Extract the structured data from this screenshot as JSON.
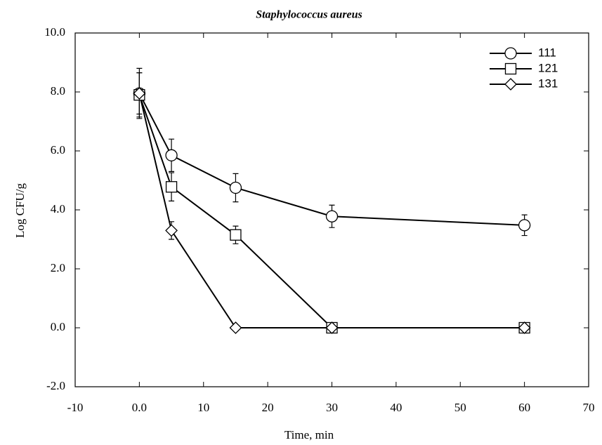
{
  "chart_data": {
    "type": "line",
    "title": "Staphylococcus aureus",
    "x_label": "Time, min",
    "y_label": "Log CFU/g",
    "x": [
      0,
      5,
      15,
      30,
      60
    ],
    "xlim": [
      -10,
      70
    ],
    "xticks": [
      -10,
      {
        "value": 0,
        "label": "0.0"
      },
      10,
      20,
      30,
      40,
      50,
      60,
      70
    ],
    "ylim": [
      -2,
      10
    ],
    "yticks": [
      {
        "value": -2,
        "label": "-2.0"
      },
      {
        "value": 0,
        "label": "0.0"
      },
      {
        "value": 2,
        "label": "2.0"
      },
      {
        "value": 4,
        "label": "4.0"
      },
      {
        "value": 6,
        "label": "6.0"
      },
      {
        "value": 8,
        "label": "8.0"
      },
      {
        "value": 10,
        "label": "10.0"
      }
    ],
    "legend_position": "upper right",
    "series": [
      {
        "name": "111",
        "color": "#000000",
        "marker": "circle",
        "values": [
          7.95,
          5.85,
          4.75,
          3.78,
          3.48
        ],
        "errors": [
          0.85,
          0.55,
          0.48,
          0.38,
          0.35
        ]
      },
      {
        "name": "121",
        "color": "#000000",
        "marker": "square",
        "values": [
          7.9,
          4.78,
          3.15,
          0,
          0
        ],
        "errors": [
          0.75,
          0.48,
          0.3,
          0,
          0
        ]
      },
      {
        "name": "131",
        "color": "#000000",
        "marker": "diamond",
        "values": [
          7.95,
          3.3,
          0,
          0,
          0
        ],
        "errors": [
          0.7,
          0.3,
          0,
          0,
          0
        ]
      }
    ]
  }
}
